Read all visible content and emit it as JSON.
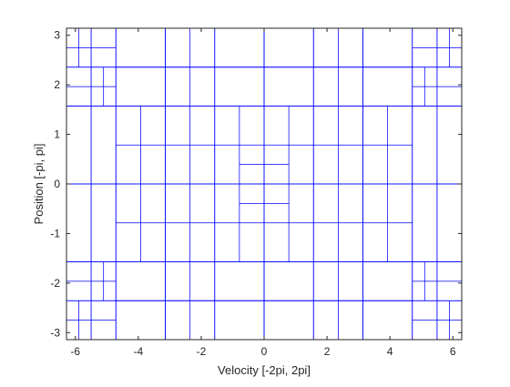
{
  "chart_data": {
    "type": "grid-partition",
    "title": "",
    "xlabel": "Velocity [-2pi, 2pi]",
    "ylabel": "Position [-pi, pi]",
    "xlim": [
      -6.2832,
      6.2832
    ],
    "ylim": [
      -3.1416,
      3.1416
    ],
    "xticks": [
      -6,
      -4,
      -2,
      0,
      2,
      4,
      6
    ],
    "yticks": [
      -3,
      -2,
      -1,
      0,
      1,
      2,
      3
    ],
    "xtick_labels": [
      "-6",
      "-4",
      "-2",
      "0",
      "2",
      "4",
      "6"
    ],
    "ytick_labels": [
      "-3",
      "-2",
      "-1",
      "0",
      "1",
      "2",
      "3"
    ],
    "grid": false,
    "line_color": "#0000ff",
    "axis_color": "#262626",
    "x_breaks": [
      -6.2832,
      -5.4978,
      -4.7124,
      -3.1416,
      -1.5708,
      0,
      1.5708,
      3.1416,
      4.7124,
      5.4978,
      6.2832
    ],
    "y_breaks": [
      -3.1416,
      -2.3562,
      -1.5708,
      0,
      1.5708,
      2.3562,
      3.1416
    ],
    "splits": [
      {
        "axis": "y",
        "at": -2.7489,
        "x0": -6.2832,
        "x1": -5.4978
      },
      {
        "axis": "y",
        "at": 2.7489,
        "x0": -6.2832,
        "x1": -5.4978
      },
      {
        "axis": "x",
        "at": -5.8905,
        "y0": -3.1416,
        "y1": -2.3562
      },
      {
        "axis": "x",
        "at": -5.8905,
        "y0": 2.3562,
        "y1": 3.1416
      },
      {
        "axis": "y",
        "at": -2.7489,
        "x0": -5.4978,
        "x1": -4.7124
      },
      {
        "axis": "y",
        "at": 2.7489,
        "x0": -5.4978,
        "x1": -4.7124
      },
      {
        "axis": "y",
        "at": -1.9635,
        "x0": -6.2832,
        "x1": -4.7124
      },
      {
        "axis": "y",
        "at": 1.9635,
        "x0": -6.2832,
        "x1": -4.7124
      },
      {
        "axis": "x",
        "at": -5.1051,
        "y0": -2.3562,
        "y1": -1.5708
      },
      {
        "axis": "x",
        "at": -5.1051,
        "y0": 1.5708,
        "y1": 2.3562
      },
      {
        "axis": "y",
        "at": -0.7854,
        "x0": -4.7124,
        "x1": -3.1416
      },
      {
        "axis": "y",
        "at": 0.7854,
        "x0": -4.7124,
        "x1": -3.1416
      },
      {
        "axis": "x",
        "at": -3.927,
        "y0": -1.5708,
        "y1": 0
      },
      {
        "axis": "x",
        "at": -3.927,
        "y0": 0,
        "y1": 1.5708
      },
      {
        "axis": "y",
        "at": -2.3562,
        "x0": -4.7124,
        "x1": -3.1416
      },
      {
        "axis": "y",
        "at": 2.3562,
        "x0": -4.7124,
        "x1": -3.1416
      },
      {
        "axis": "x",
        "at": -2.3562,
        "y0": -3.1416,
        "y1": -1.5708
      },
      {
        "axis": "x",
        "at": -2.3562,
        "y0": 1.5708,
        "y1": 3.1416
      },
      {
        "axis": "y",
        "at": -0.7854,
        "x0": -3.1416,
        "x1": -1.5708
      },
      {
        "axis": "y",
        "at": 0.7854,
        "x0": -3.1416,
        "x1": -1.5708
      },
      {
        "axis": "y",
        "at": -2.3562,
        "x0": -3.1416,
        "x1": -1.5708
      },
      {
        "axis": "y",
        "at": 2.3562,
        "x0": -3.1416,
        "x1": -1.5708
      },
      {
        "axis": "x",
        "at": -0.7854,
        "y0": -1.5708,
        "y1": 1.5708
      },
      {
        "axis": "x",
        "at": 0.7854,
        "y0": -1.5708,
        "y1": 1.5708
      },
      {
        "axis": "y",
        "at": -0.7854,
        "x0": -1.5708,
        "x1": 1.5708
      },
      {
        "axis": "y",
        "at": 0.7854,
        "x0": -1.5708,
        "x1": 1.5708
      },
      {
        "axis": "y",
        "at": -2.3562,
        "x0": -1.5708,
        "x1": 1.5708
      },
      {
        "axis": "y",
        "at": 2.3562,
        "x0": -1.5708,
        "x1": 1.5708
      },
      {
        "axis": "x",
        "at": 0,
        "y0": -3.1416,
        "y1": -1.5708
      },
      {
        "axis": "x",
        "at": 0,
        "y0": 1.5708,
        "y1": 3.1416
      },
      {
        "axis": "y",
        "at": -0.3927,
        "x0": -0.7854,
        "x1": 0.7854
      },
      {
        "axis": "y",
        "at": 0.3927,
        "x0": -0.7854,
        "x1": 0.7854
      },
      {
        "axis": "x",
        "at": -2.3562,
        "y0": -1.5708,
        "y1": 1.5708
      },
      {
        "axis": "x",
        "at": 2.3562,
        "y0": -1.5708,
        "y1": 1.5708
      },
      {
        "axis": "y",
        "at": -0.7854,
        "x0": 1.5708,
        "x1": 3.1416
      },
      {
        "axis": "y",
        "at": 0.7854,
        "x0": 1.5708,
        "x1": 3.1416
      },
      {
        "axis": "y",
        "at": -2.3562,
        "x0": 1.5708,
        "x1": 3.1416
      },
      {
        "axis": "y",
        "at": 2.3562,
        "x0": 1.5708,
        "x1": 3.1416
      },
      {
        "axis": "x",
        "at": 2.3562,
        "y0": -3.1416,
        "y1": -1.5708
      },
      {
        "axis": "x",
        "at": 2.3562,
        "y0": 1.5708,
        "y1": 3.1416
      },
      {
        "axis": "y",
        "at": -0.7854,
        "x0": 3.1416,
        "x1": 4.7124
      },
      {
        "axis": "y",
        "at": 0.7854,
        "x0": 3.1416,
        "x1": 4.7124
      },
      {
        "axis": "x",
        "at": 3.927,
        "y0": -1.5708,
        "y1": 0
      },
      {
        "axis": "x",
        "at": 3.927,
        "y0": 0,
        "y1": 1.5708
      },
      {
        "axis": "y",
        "at": -2.3562,
        "x0": 3.1416,
        "x1": 4.7124
      },
      {
        "axis": "y",
        "at": 2.3562,
        "x0": 3.1416,
        "x1": 4.7124
      },
      {
        "axis": "y",
        "at": -2.7489,
        "x0": 4.7124,
        "x1": 5.4978
      },
      {
        "axis": "y",
        "at": 2.7489,
        "x0": 4.7124,
        "x1": 5.4978
      },
      {
        "axis": "x",
        "at": 5.1051,
        "y0": -2.3562,
        "y1": -1.5708
      },
      {
        "axis": "x",
        "at": 5.1051,
        "y0": 1.5708,
        "y1": 2.3562
      },
      {
        "axis": "y",
        "at": -1.9635,
        "x0": 4.7124,
        "x1": 6.2832
      },
      {
        "axis": "y",
        "at": 1.9635,
        "x0": 4.7124,
        "x1": 6.2832
      },
      {
        "axis": "y",
        "at": -2.7489,
        "x0": 5.4978,
        "x1": 6.2832
      },
      {
        "axis": "y",
        "at": 2.7489,
        "x0": 5.4978,
        "x1": 6.2832
      },
      {
        "axis": "x",
        "at": 5.8905,
        "y0": -3.1416,
        "y1": -2.3562
      },
      {
        "axis": "x",
        "at": 5.8905,
        "y0": 2.3562,
        "y1": 3.1416
      }
    ]
  }
}
